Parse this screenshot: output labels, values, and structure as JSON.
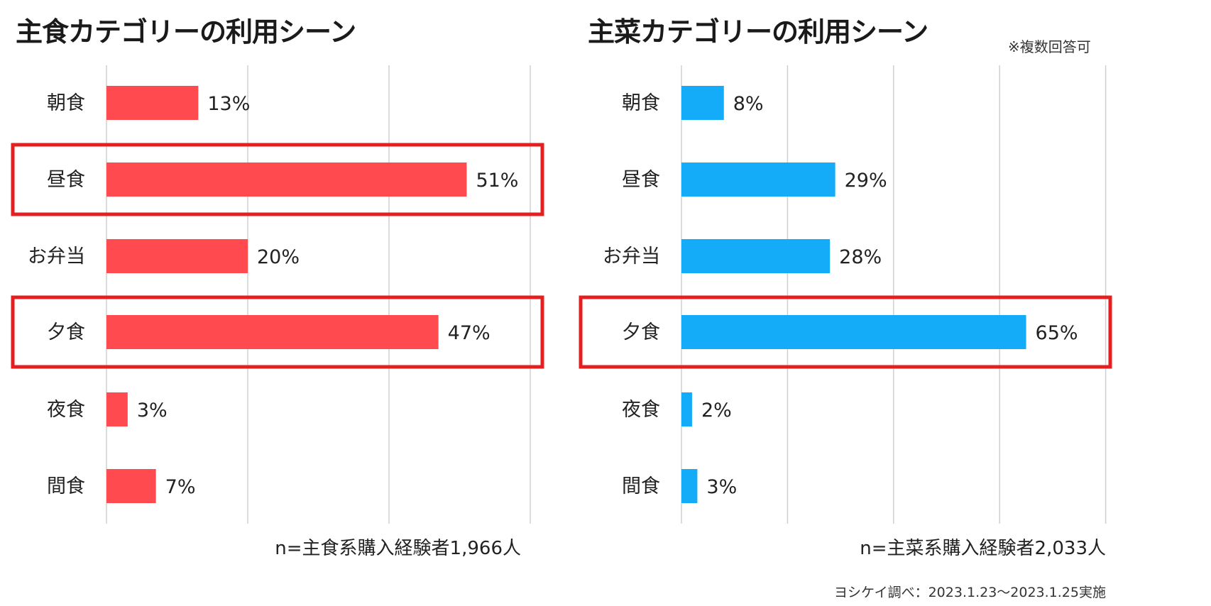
{
  "colors": {
    "left_bar": "#ff4a4f",
    "right_bar": "#14acf8",
    "highlight": "#e41f1f",
    "grid": "#d0d0d0"
  },
  "note": "※複数回答可",
  "credit": "ヨシケイ調べ：2023.1.23〜2023.1.25実施",
  "chart_data": [
    {
      "type": "bar",
      "orientation": "horizontal",
      "title": "主食カテゴリーの利用シーン",
      "categories": [
        "朝食",
        "昼食",
        "お弁当",
        "夕食",
        "夜食",
        "間食"
      ],
      "values": [
        13,
        51,
        20,
        47,
        3,
        7
      ],
      "value_labels": [
        "13%",
        "51%",
        "20%",
        "47%",
        "3%",
        "7%"
      ],
      "unit": "%",
      "xlim": [
        0,
        60
      ],
      "grid": true,
      "highlighted_categories": [
        "昼食",
        "夕食"
      ],
      "sample_note": "n=主食系購入経験者1,966人"
    },
    {
      "type": "bar",
      "orientation": "horizontal",
      "title": "主菜カテゴリーの利用シーン",
      "categories": [
        "朝食",
        "昼食",
        "お弁当",
        "夕食",
        "夜食",
        "間食"
      ],
      "values": [
        8,
        29,
        28,
        65,
        2,
        3
      ],
      "value_labels": [
        "8%",
        "29%",
        "28%",
        "65%",
        "2%",
        "3%"
      ],
      "unit": "%",
      "xlim": [
        0,
        80
      ],
      "grid": true,
      "highlighted_categories": [
        "夕食"
      ],
      "sample_note": "n=主菜系購入経験者2,033人"
    }
  ]
}
